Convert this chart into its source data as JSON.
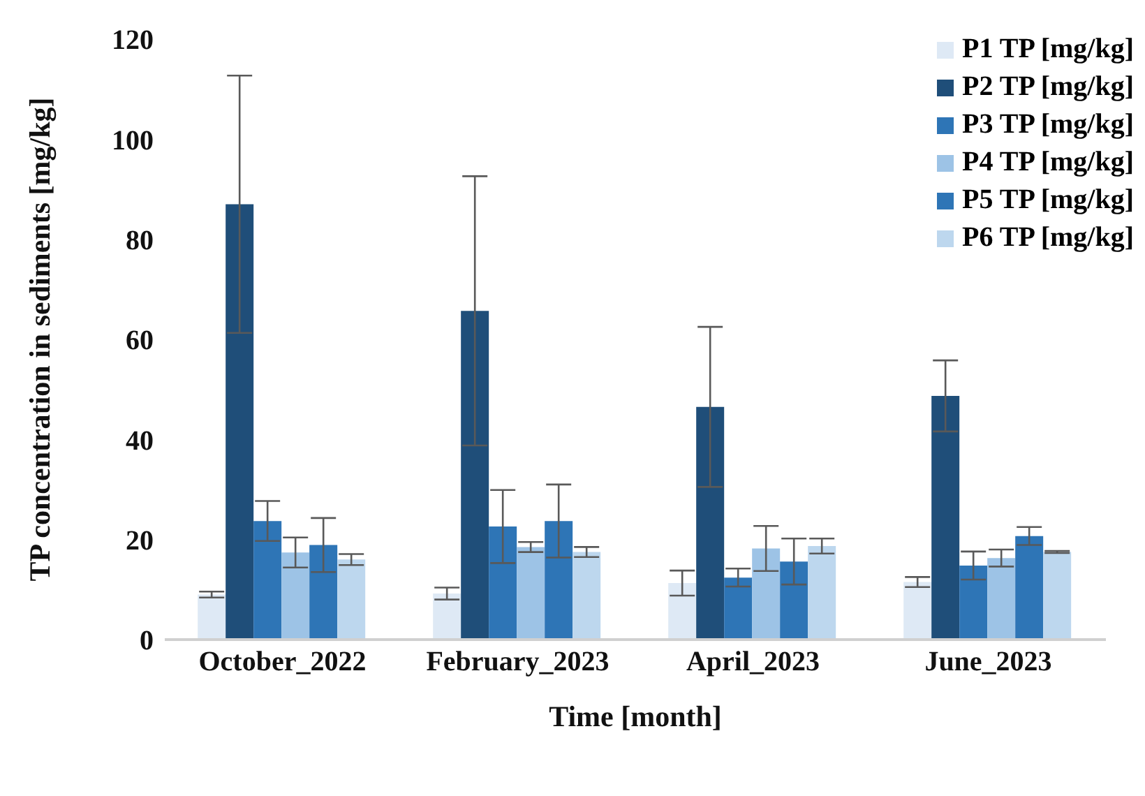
{
  "chart_data": {
    "type": "bar",
    "xlabel": "Time [month]",
    "ylabel": "TP concentration in sediments [mg/kg]",
    "categories": [
      "October_2022",
      "February_2023",
      "April_2023",
      "June_2023"
    ],
    "ylim": [
      0,
      120
    ],
    "yticks": [
      0,
      20,
      40,
      60,
      80,
      100,
      120
    ],
    "grid": false,
    "legend": "top right",
    "series": [
      {
        "name": "P1 TP [mg/kg]",
        "color": "#dee9f5",
        "values": [
          9.0,
          9.2,
          11.3,
          11.5
        ],
        "errors": [
          0.6,
          1.2,
          2.5,
          1.0
        ]
      },
      {
        "name": "P2 TP [mg/kg]",
        "color": "#1f4e79",
        "values": [
          87.0,
          65.7,
          46.5,
          48.7
        ],
        "errors": [
          25.7,
          26.9,
          16.0,
          7.1
        ]
      },
      {
        "name": "P3 TP [mg/kg]",
        "color": "#2e75b6",
        "values": [
          23.7,
          22.6,
          12.4,
          14.8
        ],
        "errors": [
          4.0,
          7.3,
          1.8,
          2.8
        ]
      },
      {
        "name": "P4 TP [mg/kg]",
        "color": "#9dc3e6",
        "values": [
          17.4,
          18.5,
          18.2,
          16.3
        ],
        "errors": [
          3.0,
          1.0,
          4.5,
          1.7
        ]
      },
      {
        "name": "P5 TP [mg/kg]",
        "color": "#2e75b6",
        "values": [
          18.9,
          23.7,
          15.6,
          20.7
        ],
        "errors": [
          5.4,
          7.3,
          4.6,
          1.8
        ]
      },
      {
        "name": "P6 TP [mg/kg]",
        "color": "#bdd7ee",
        "values": [
          16.0,
          17.5,
          18.7,
          17.5
        ],
        "errors": [
          1.1,
          1.0,
          1.5,
          0.2
        ]
      }
    ]
  }
}
